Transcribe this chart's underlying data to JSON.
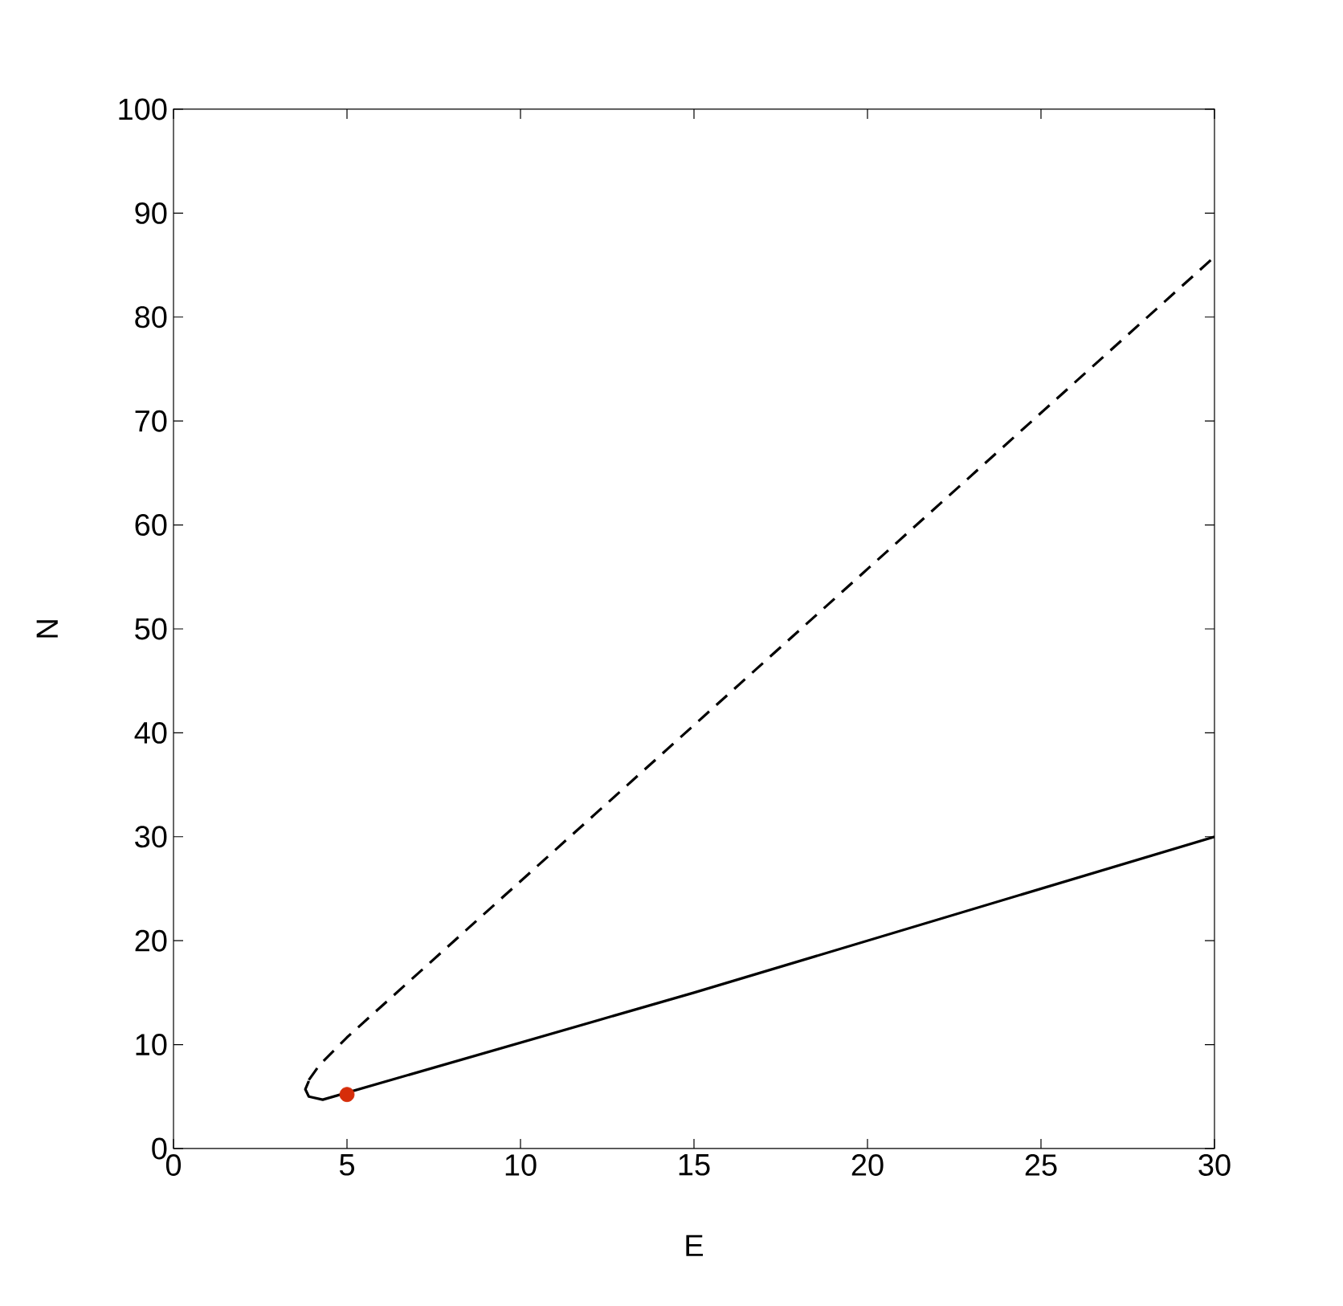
{
  "chart_data": {
    "type": "line",
    "xlabel": "E",
    "ylabel": "N",
    "xlim": [
      0,
      30
    ],
    "ylim": [
      0,
      100
    ],
    "xticks": [
      0,
      5,
      10,
      15,
      20,
      25,
      30
    ],
    "yticks": [
      0,
      10,
      20,
      30,
      40,
      50,
      60,
      70,
      80,
      90,
      100
    ],
    "series": [
      {
        "color": "#000000",
        "line_style": "solid",
        "x": [
          3.9,
          3.8,
          3.9,
          4.3,
          15,
          30
        ],
        "values": [
          6.5,
          5.7,
          5.0,
          4.7,
          15,
          30
        ]
      },
      {
        "color": "#000000",
        "line_style": "dashed",
        "x": [
          3.9,
          4.2,
          5,
          30
        ],
        "values": [
          6.6,
          8,
          10.7,
          85.8
        ]
      },
      {
        "type": "scatter",
        "color": "#d62d0a",
        "marker": "circle",
        "x": [
          5
        ],
        "values": [
          5.2
        ]
      }
    ]
  }
}
